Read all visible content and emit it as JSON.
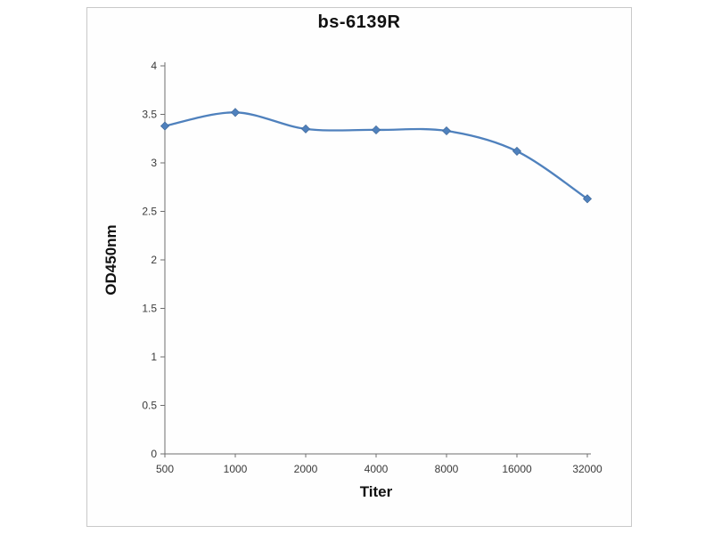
{
  "chart_data": {
    "type": "line",
    "title": "bs-6139R",
    "xlabel": "Titer",
    "ylabel": "OD450nm",
    "categories": [
      "500",
      "1000",
      "2000",
      "4000",
      "8000",
      "16000",
      "32000"
    ],
    "series": [
      {
        "name": "bs-6139R",
        "values": [
          3.38,
          3.52,
          3.35,
          3.34,
          3.33,
          3.12,
          2.63
        ]
      }
    ],
    "ylim": [
      0,
      4
    ],
    "yticks": [
      0,
      0.5,
      1,
      1.5,
      2,
      2.5,
      3,
      3.5,
      4
    ],
    "grid": false,
    "legend": "none",
    "line_color": "#4f81bd",
    "marker": "diamond",
    "axis_color": "#6e6e6e",
    "tick_label_color": "#3a3a3a"
  }
}
